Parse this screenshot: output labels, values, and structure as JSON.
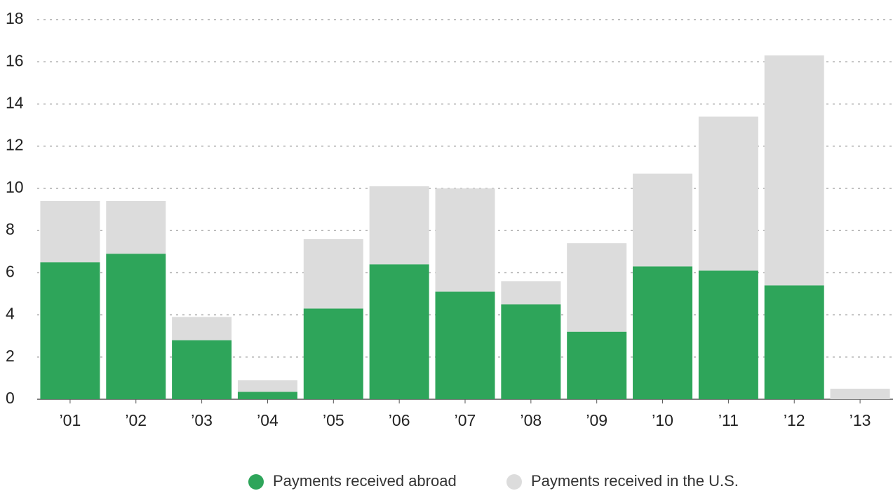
{
  "chart_data": {
    "type": "stacked_bar",
    "categories": [
      "’01",
      "’02",
      "’03",
      "’04",
      "’05",
      "’06",
      "’07",
      "’08",
      "’09",
      "’10",
      "’11",
      "’12",
      "’13"
    ],
    "series": [
      {
        "name": "Payments received abroad",
        "color": "#2ea55a",
        "values": [
          6.5,
          6.9,
          2.8,
          0.35,
          4.3,
          6.4,
          5.1,
          4.5,
          3.2,
          6.3,
          6.1,
          5.4,
          0
        ]
      },
      {
        "name": "Payments received in the U.S.",
        "color": "#dcdcdc",
        "values": [
          2.9,
          2.5,
          1.1,
          0.55,
          3.3,
          3.7,
          4.9,
          1.1,
          4.2,
          4.4,
          7.3,
          10.9,
          0.5
        ]
      }
    ],
    "ylim": [
      0,
      18
    ],
    "yticks": [
      0,
      2,
      4,
      6,
      8,
      10,
      12,
      14,
      16,
      18
    ],
    "grid": true,
    "legend": "bottom"
  }
}
